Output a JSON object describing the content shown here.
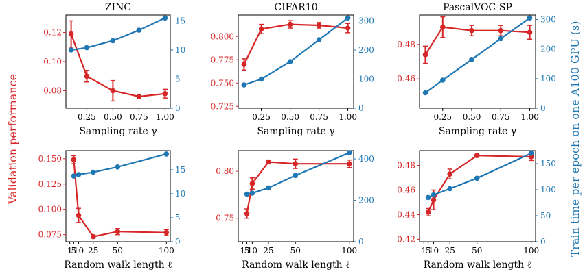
{
  "figure": {
    "left_label": "Validation performance",
    "right_label": "Train time per epoch on one A100 GPU (s)",
    "left_color": "#d62728",
    "right_color": "#1f77b4"
  },
  "chart_data": [
    {
      "type": "line",
      "row": 0,
      "col": 0,
      "title": "ZINC",
      "xlabel": "Sampling rate γ",
      "xlim": [
        0.05,
        1.05
      ],
      "xticks": [
        0.25,
        0.5,
        0.75,
        1.0
      ],
      "xtick_labels": [
        "0.25",
        "0.50",
        "0.75",
        "1.00"
      ],
      "left": {
        "ylim": [
          0.068,
          0.132
        ],
        "ticks": [
          0.08,
          0.1,
          0.12
        ],
        "tick_labels": [
          "0.08",
          "0.10",
          "0.12"
        ]
      },
      "right": {
        "ylim": [
          0,
          16
        ],
        "ticks": [
          0,
          5,
          10,
          15
        ],
        "tick_labels": [
          "0",
          "5",
          "10",
          "15"
        ]
      },
      "series": [
        {
          "axis": "left",
          "color": "#d62728",
          "x": [
            0.1,
            0.25,
            0.5,
            0.75,
            1.0
          ],
          "y": [
            0.119,
            0.09,
            0.08,
            0.076,
            0.078
          ],
          "err": [
            0.009,
            0.004,
            0.007,
            0.0015,
            0.003
          ]
        },
        {
          "axis": "right",
          "color": "#1f77b4",
          "x": [
            0.1,
            0.25,
            0.5,
            0.75,
            1.0
          ],
          "y": [
            10.0,
            10.4,
            11.6,
            13.4,
            15.5
          ]
        }
      ]
    },
    {
      "type": "line",
      "row": 0,
      "col": 1,
      "title": "CIFAR10",
      "xlabel": "Sampling rate γ",
      "xlim": [
        0.05,
        1.05
      ],
      "xticks": [
        0.25,
        0.5,
        0.75,
        1.0
      ],
      "xtick_labels": [
        "0.25",
        "0.50",
        "0.75",
        "1.00"
      ],
      "left": {
        "ylim": [
          0.723,
          0.823
        ],
        "ticks": [
          0.725,
          0.75,
          0.775,
          0.8
        ],
        "tick_labels": [
          "0.725",
          "0.750",
          "0.775",
          "0.800"
        ]
      },
      "right": {
        "ylim": [
          0,
          320
        ],
        "ticks": [
          0,
          100,
          200,
          300
        ],
        "tick_labels": [
          "0",
          "100",
          "200",
          "300"
        ]
      },
      "series": [
        {
          "axis": "left",
          "color": "#d62728",
          "x": [
            0.1,
            0.25,
            0.5,
            0.75,
            1.0
          ],
          "y": [
            0.77,
            0.808,
            0.813,
            0.812,
            0.809
          ],
          "err": [
            0.006,
            0.005,
            0.004,
            0.003,
            0.005
          ]
        },
        {
          "axis": "right",
          "color": "#1f77b4",
          "x": [
            0.1,
            0.25,
            0.5,
            0.75,
            1.0
          ],
          "y": [
            80,
            100,
            160,
            235,
            310
          ]
        }
      ]
    },
    {
      "type": "line",
      "row": 0,
      "col": 2,
      "title": "PascalVOC-SP",
      "xlabel": "Sampling rate γ",
      "xlim": [
        0.05,
        1.05
      ],
      "xticks": [
        0.25,
        0.5,
        0.75,
        1.0
      ],
      "xtick_labels": [
        "0.25",
        "0.50",
        "0.75",
        "1.00"
      ],
      "left": {
        "ylim": [
          0.443,
          0.497
        ],
        "ticks": [
          0.46,
          0.48
        ],
        "tick_labels": [
          "0.46",
          "0.48"
        ]
      },
      "right": {
        "ylim": [
          0,
          315
        ],
        "ticks": [
          0,
          100,
          200,
          300
        ],
        "tick_labels": [
          "0",
          "100",
          "200",
          "300"
        ]
      },
      "series": [
        {
          "axis": "left",
          "color": "#d62728",
          "x": [
            0.1,
            0.25,
            0.5,
            0.75,
            1.0
          ],
          "y": [
            0.474,
            0.49,
            0.488,
            0.488,
            0.487
          ],
          "err": [
            0.005,
            0.006,
            0.003,
            0.003,
            0.004
          ]
        },
        {
          "axis": "right",
          "color": "#1f77b4",
          "x": [
            0.1,
            0.25,
            0.5,
            0.75,
            1.0
          ],
          "y": [
            52,
            95,
            165,
            235,
            305
          ]
        }
      ]
    },
    {
      "type": "line",
      "row": 1,
      "col": 0,
      "title": "",
      "xlabel": "Random walk length ℓ",
      "xlim": [
        -3,
        104
      ],
      "xticks": [
        1,
        5,
        10,
        25,
        50,
        100
      ],
      "xtick_labels": [
        "1",
        "5",
        "10",
        "25",
        "50",
        "100"
      ],
      "left": {
        "ylim": [
          0.068,
          0.158
        ],
        "ticks": [
          0.075,
          0.1,
          0.125,
          0.15
        ],
        "tick_labels": [
          "0.075",
          "0.100",
          "0.125",
          "0.150"
        ]
      },
      "right": {
        "ylim": [
          0,
          19
        ],
        "ticks": [
          0,
          5,
          10,
          15
        ],
        "tick_labels": [
          "0",
          "5",
          "10",
          "15"
        ]
      },
      "series": [
        {
          "axis": "left",
          "color": "#d62728",
          "x": [
            5,
            10,
            25,
            50,
            100
          ],
          "y": [
            0.149,
            0.094,
            0.073,
            0.078,
            0.077
          ],
          "err": [
            0.004,
            0.007,
            0.0015,
            0.003,
            0.003
          ]
        },
        {
          "axis": "right",
          "color": "#1f77b4",
          "x": [
            5,
            10,
            25,
            50,
            100
          ],
          "y": [
            13.7,
            14.0,
            14.5,
            15.6,
            18.3
          ]
        }
      ]
    },
    {
      "type": "line",
      "row": 1,
      "col": 1,
      "title": "",
      "xlabel": "Random walk length ℓ",
      "xlim": [
        -3,
        104
      ],
      "xticks": [
        1,
        5,
        10,
        25,
        50,
        100
      ],
      "xtick_labels": [
        "1",
        "5",
        "10",
        "25",
        "50",
        "100"
      ],
      "left": {
        "ylim": [
          0.725,
          0.822
        ],
        "ticks": [
          0.75,
          0.8
        ],
        "tick_labels": [
          "0.75",
          "0.80"
        ]
      },
      "right": {
        "ylim": [
          0,
          440
        ],
        "ticks": [
          0,
          200,
          400
        ],
        "tick_labels": [
          "0",
          "200",
          "400"
        ]
      },
      "series": [
        {
          "axis": "left",
          "color": "#d62728",
          "x": [
            5,
            10,
            25,
            50,
            100
          ],
          "y": [
            0.755,
            0.787,
            0.81,
            0.808,
            0.808
          ],
          "err": [
            0.005,
            0.006,
            0.002,
            0.005,
            0.004
          ]
        },
        {
          "axis": "right",
          "color": "#1f77b4",
          "x": [
            5,
            10,
            25,
            50,
            100
          ],
          "y": [
            230,
            235,
            260,
            320,
            430
          ]
        }
      ]
    },
    {
      "type": "line",
      "row": 1,
      "col": 2,
      "title": "",
      "xlabel": "Random walk length ℓ",
      "xlim": [
        -3,
        104
      ],
      "xticks": [
        1,
        5,
        10,
        25,
        50,
        100
      ],
      "xtick_labels": [
        "1",
        "5",
        "10",
        "25",
        "50",
        "100"
      ],
      "left": {
        "ylim": [
          0.418,
          0.492
        ],
        "ticks": [
          0.42,
          0.44,
          0.46,
          0.48
        ],
        "tick_labels": [
          "0.42",
          "0.44",
          "0.46",
          "0.48"
        ]
      },
      "right": {
        "ylim": [
          0,
          175
        ],
        "ticks": [
          0,
          50,
          100,
          150
        ],
        "tick_labels": [
          "0",
          "50",
          "100",
          "150"
        ]
      },
      "series": [
        {
          "axis": "left",
          "color": "#d62728",
          "x": [
            5,
            10,
            25,
            50,
            100
          ],
          "y": [
            0.442,
            0.452,
            0.473,
            0.488,
            0.487
          ],
          "err": [
            0.003,
            0.008,
            0.004,
            0.001,
            0.003
          ]
        },
        {
          "axis": "right",
          "color": "#1f77b4",
          "x": [
            5,
            10,
            25,
            50,
            100
          ],
          "y": [
            85,
            90,
            102,
            122,
            170
          ]
        }
      ]
    }
  ]
}
